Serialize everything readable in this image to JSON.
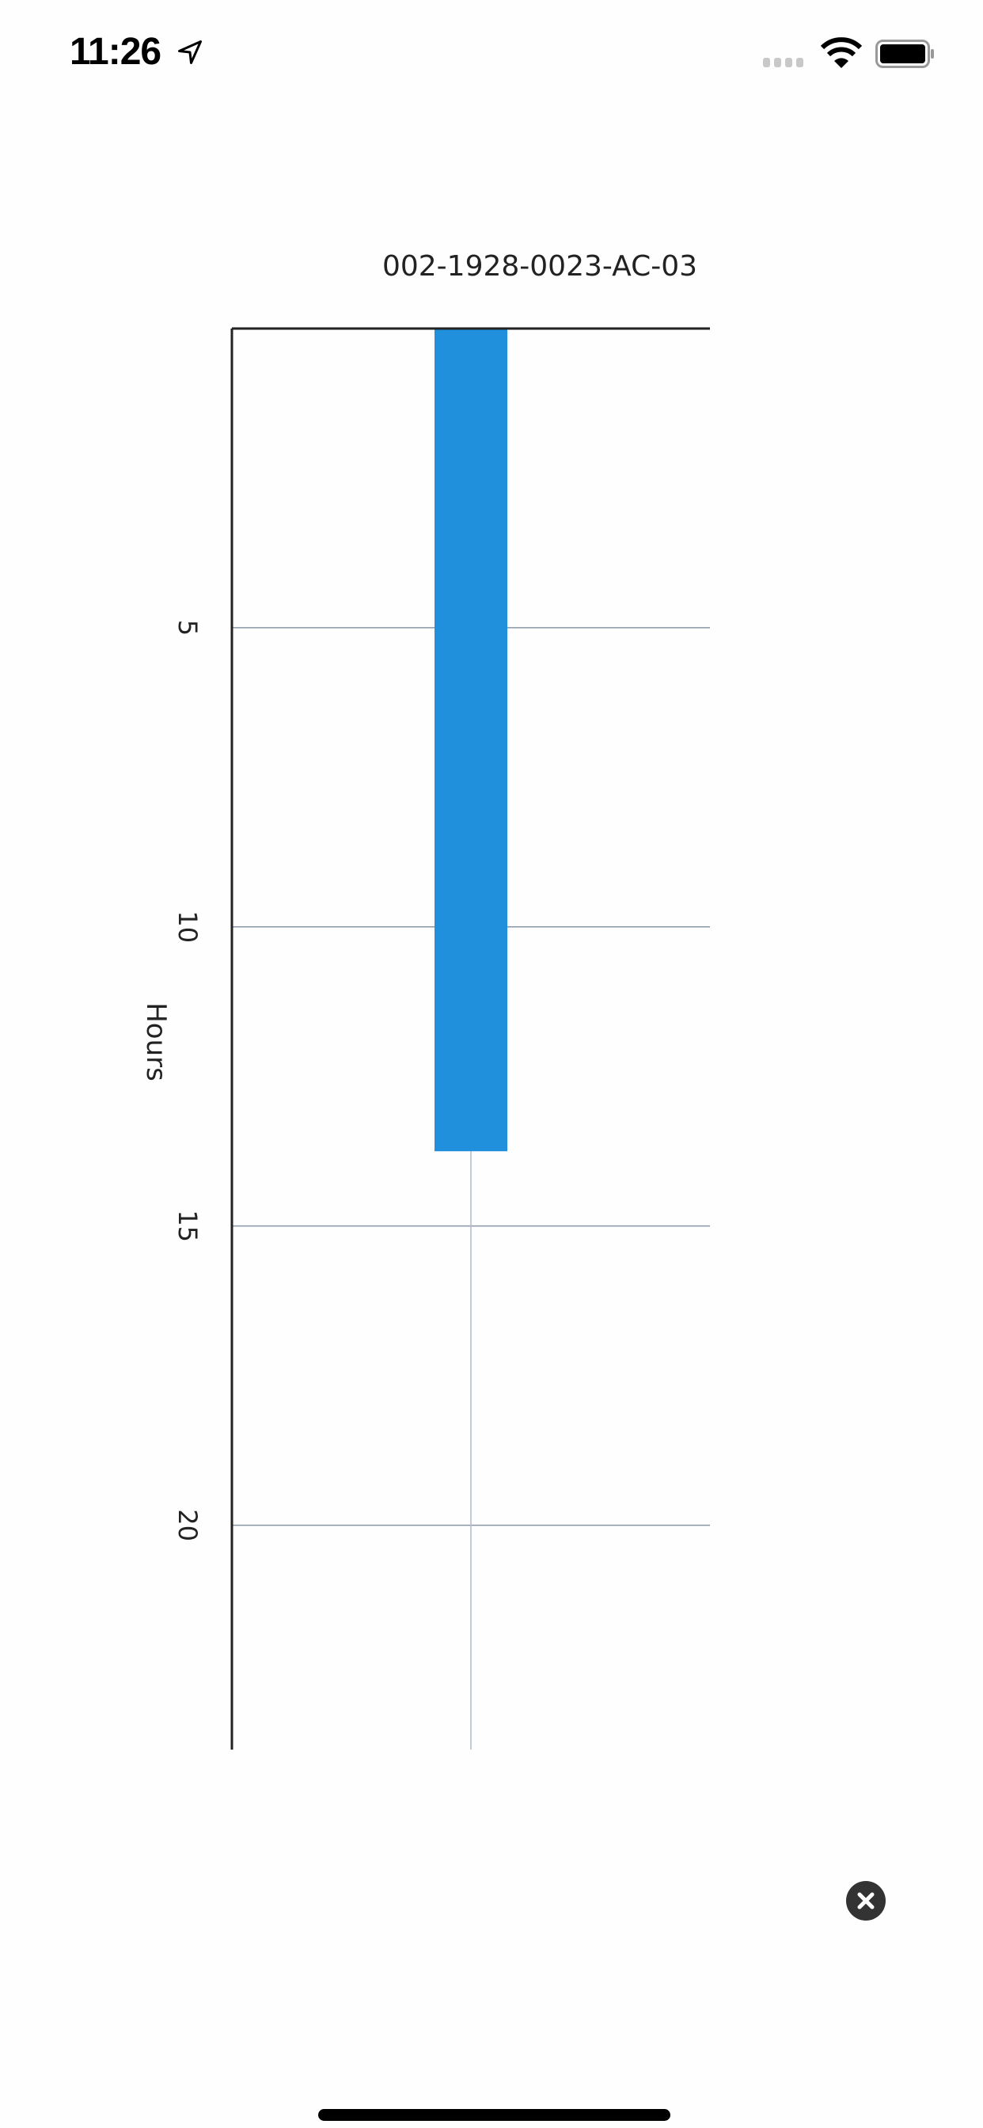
{
  "status_bar": {
    "time": "11:26",
    "battery_level": 1.0
  },
  "chart_data": {
    "type": "bar",
    "orientation": "vertical-rotated",
    "title": "002-1928-0023-AC-03",
    "categories": [
      ""
    ],
    "values": [
      13.75
    ],
    "ylabel": "Hours",
    "ylim": [
      0,
      23.75
    ],
    "yticks": [
      "5",
      "10",
      "15",
      "20"
    ],
    "ytick_values": [
      5,
      10,
      15,
      20
    ],
    "grid": true,
    "bar_color": "#208fdc",
    "axis_color": "#222222",
    "grid_color": "#8a96a6"
  },
  "close_button": {
    "icon": "close-circle-icon"
  }
}
